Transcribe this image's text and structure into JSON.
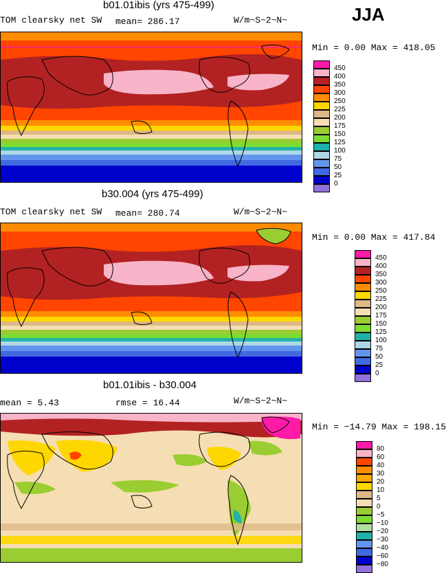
{
  "season": "JJA",
  "panels": [
    {
      "title": "b01.01ibis (yrs 475-499)",
      "left_label": "TOM clearsky net SW",
      "mid_label": "mean= 286.17",
      "units": "W/m~S~2~N~",
      "min_max": "Min =   0.00 Max = 418.05",
      "legend_labels": [
        "450",
        "400",
        "350",
        "300",
        "250",
        "225",
        "200",
        "175",
        "150",
        "125",
        "100",
        "75",
        "50",
        "25",
        "0"
      ],
      "legend_colors": [
        "#ff1aa8",
        "#f8b4c8",
        "#b22222",
        "#ff4500",
        "#ff8c00",
        "#ffd700",
        "#deb887",
        "#f5deb3",
        "#9acd32",
        "#7cdc32",
        "#20b2aa",
        "#add8e6",
        "#6495ed",
        "#4169e1",
        "#0000cd",
        "#9370db"
      ]
    },
    {
      "title": "b30.004 (yrs 475-499)",
      "left_label": "TOM clearsky net SW",
      "mid_label": "mean= 280.74",
      "units": "W/m~S~2~N~",
      "min_max": "Min =   0.00 Max = 417.84",
      "legend_labels": [
        "450",
        "400",
        "350",
        "300",
        "250",
        "225",
        "200",
        "175",
        "150",
        "125",
        "100",
        "75",
        "50",
        "25",
        "0"
      ],
      "legend_colors": [
        "#ff1aa8",
        "#f8b4c8",
        "#b22222",
        "#ff4500",
        "#ff8c00",
        "#ffd700",
        "#deb887",
        "#f5deb3",
        "#9acd32",
        "#7cdc32",
        "#20b2aa",
        "#add8e6",
        "#6495ed",
        "#4169e1",
        "#0000cd",
        "#9370db"
      ]
    },
    {
      "title": "b01.01ibis - b30.004",
      "left_label": "mean =    5.43",
      "mid_label": "rmse =   16.44",
      "units": "W/m~S~2~N~",
      "min_max": "Min = −14.79 Max = 198.15",
      "legend_labels": [
        "80",
        "60",
        "40",
        "30",
        "20",
        "10",
        "5",
        "0",
        "−5",
        "−10",
        "−20",
        "−30",
        "−40",
        "−60",
        "−80"
      ],
      "legend_colors": [
        "#ff1aa8",
        "#f8b4c8",
        "#ff4500",
        "#ff8c00",
        "#ffa500",
        "#ffd700",
        "#deb887",
        "#f5deb3",
        "#9acd32",
        "#7cdc32",
        "#b0e0a0",
        "#20b2aa",
        "#6495ed",
        "#4169e1",
        "#0000cd",
        "#9370db"
      ]
    }
  ],
  "chart_data": [
    {
      "type": "heatmap",
      "title": "b01.01ibis (yrs 475-499)",
      "variable": "TOM clearsky net SW",
      "mean": 286.17,
      "units": "W/m~S~2~N~",
      "min": 0.0,
      "max": 418.05,
      "levels": [
        0,
        25,
        50,
        75,
        100,
        125,
        150,
        175,
        200,
        225,
        250,
        300,
        350,
        400,
        450
      ]
    },
    {
      "type": "heatmap",
      "title": "b30.004 (yrs 475-499)",
      "variable": "TOM clearsky net SW",
      "mean": 280.74,
      "units": "W/m~S~2~N~",
      "min": 0.0,
      "max": 417.84,
      "levels": [
        0,
        25,
        50,
        75,
        100,
        125,
        150,
        175,
        200,
        225,
        250,
        300,
        350,
        400,
        450
      ]
    },
    {
      "type": "heatmap",
      "title": "b01.01ibis - b30.004",
      "mean": 5.43,
      "rmse": 16.44,
      "units": "W/m~S~2~N~",
      "min": -14.79,
      "max": 198.15,
      "levels": [
        -80,
        -60,
        -40,
        -30,
        -20,
        -10,
        -5,
        0,
        5,
        10,
        20,
        30,
        40,
        60,
        80
      ]
    }
  ]
}
